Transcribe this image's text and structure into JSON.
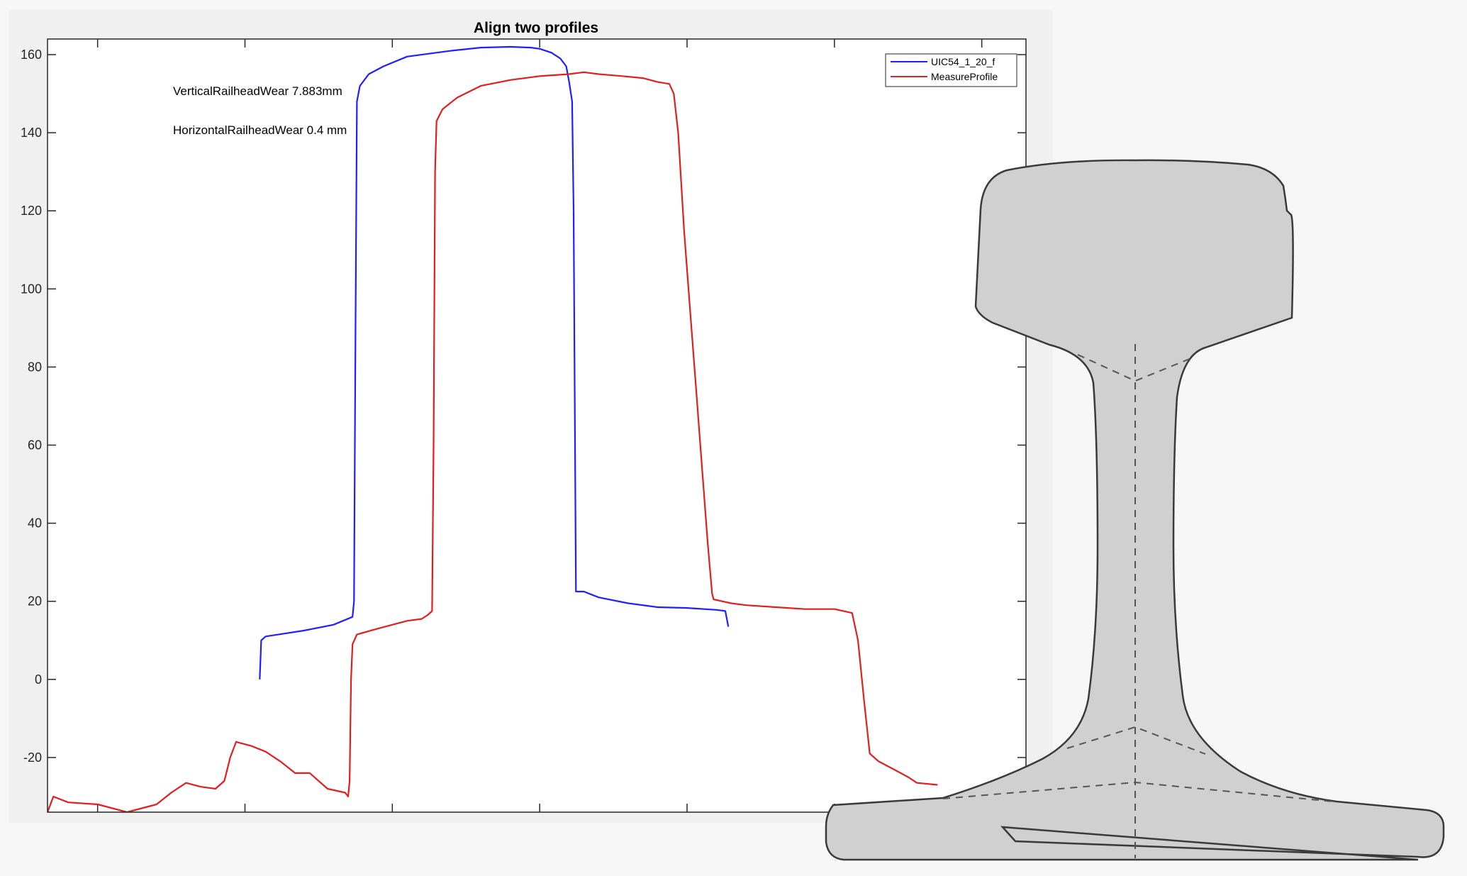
{
  "chart_data": {
    "type": "line",
    "title": "Align two profiles",
    "xlabel": "",
    "ylabel": "",
    "ylim": [
      -34,
      164
    ],
    "yticks": [
      -20,
      0,
      20,
      40,
      60,
      80,
      100,
      120,
      140,
      160
    ],
    "grid": false,
    "legend_position": "top-right",
    "annotations": [
      "VerticalRailheadWear 7.883mm",
      "HorizontalRailheadWear 0.4 mm"
    ],
    "series": [
      {
        "name": "UIC54_1_20_f",
        "color": "#1f1fff",
        "points": [
          [
            -45,
            0
          ],
          [
            -44.5,
            10
          ],
          [
            -43,
            11
          ],
          [
            -30,
            12.5
          ],
          [
            -20,
            14
          ],
          [
            -13.5,
            16
          ],
          [
            -13,
            20
          ],
          [
            -12.5,
            90
          ],
          [
            -12,
            148
          ],
          [
            -11,
            152
          ],
          [
            -8,
            155
          ],
          [
            -3,
            157
          ],
          [
            5,
            159.5
          ],
          [
            20,
            161
          ],
          [
            30,
            161.8
          ],
          [
            40,
            162
          ],
          [
            47,
            161.8
          ],
          [
            50,
            161.5
          ],
          [
            54,
            160.5
          ],
          [
            57,
            159
          ],
          [
            59,
            157
          ],
          [
            60,
            153
          ],
          [
            61,
            148
          ],
          [
            61.5,
            120
          ],
          [
            62,
            60
          ],
          [
            62.3,
            22.5
          ],
          [
            65,
            22.5
          ],
          [
            70,
            21
          ],
          [
            80,
            19.5
          ],
          [
            90,
            18.5
          ],
          [
            100,
            18.3
          ],
          [
            110,
            17.8
          ],
          [
            113,
            17.5
          ],
          [
            114,
            13.5
          ]
        ]
      },
      {
        "name": "MeasureProfile",
        "color": "#e01f1f",
        "points": [
          [
            -117,
            -34
          ],
          [
            -115,
            -30
          ],
          [
            -110,
            -31.5
          ],
          [
            -100,
            -32
          ],
          [
            -90,
            -34
          ],
          [
            -85,
            -33
          ],
          [
            -80,
            -32
          ],
          [
            -75,
            -29
          ],
          [
            -70,
            -26.5
          ],
          [
            -65,
            -27.5
          ],
          [
            -60,
            -28
          ],
          [
            -57,
            -26
          ],
          [
            -55,
            -20
          ],
          [
            -53,
            -16
          ],
          [
            -48,
            -17
          ],
          [
            -43,
            -18.5
          ],
          [
            -38,
            -21
          ],
          [
            -33,
            -24
          ],
          [
            -28,
            -24
          ],
          [
            -22,
            -28
          ],
          [
            -16,
            -29
          ],
          [
            -15,
            -30
          ],
          [
            -14.5,
            -26
          ],
          [
            -14,
            0
          ],
          [
            -13.5,
            9
          ],
          [
            -12,
            11.5
          ],
          [
            -5,
            13
          ],
          [
            0,
            14
          ],
          [
            5,
            15
          ],
          [
            10,
            15.5
          ],
          [
            12,
            16.5
          ],
          [
            13.5,
            17.5
          ],
          [
            14,
            60
          ],
          [
            14.5,
            130
          ],
          [
            15,
            143
          ],
          [
            17,
            146
          ],
          [
            22,
            149
          ],
          [
            30,
            152
          ],
          [
            40,
            153.5
          ],
          [
            50,
            154.5
          ],
          [
            60,
            155
          ],
          [
            65,
            155.5
          ],
          [
            70,
            155
          ],
          [
            78,
            154.5
          ],
          [
            85,
            154
          ],
          [
            90,
            153
          ],
          [
            94,
            152.5
          ],
          [
            95.5,
            150
          ],
          [
            97,
            140
          ],
          [
            99,
            115
          ],
          [
            101,
            95
          ],
          [
            103,
            75
          ],
          [
            105,
            55
          ],
          [
            107,
            35
          ],
          [
            108.5,
            22
          ],
          [
            109,
            20.5
          ],
          [
            115,
            19.5
          ],
          [
            120,
            19
          ],
          [
            130,
            18.5
          ],
          [
            140,
            18
          ],
          [
            150,
            18
          ],
          [
            156,
            17
          ],
          [
            158,
            10
          ],
          [
            160,
            -5
          ],
          [
            162,
            -19
          ],
          [
            165,
            -21
          ],
          [
            170,
            -23
          ],
          [
            175,
            -25
          ],
          [
            178,
            -26.5
          ],
          [
            185,
            -27
          ]
        ]
      }
    ]
  },
  "rail": {
    "fill": "#d0d0d0",
    "stroke": "#3a3a3a"
  }
}
